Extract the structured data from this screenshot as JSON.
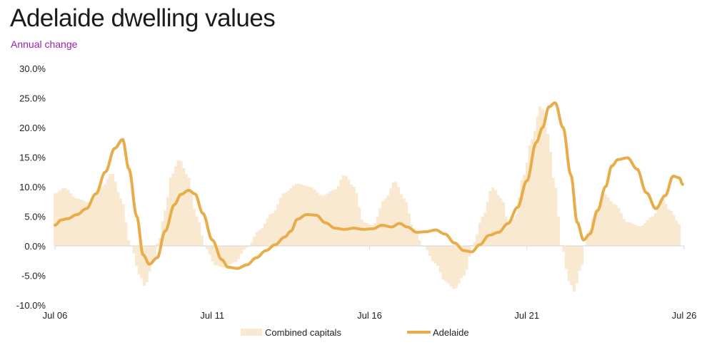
{
  "title": "Adelaide dwelling values",
  "subtitle": "Annual change",
  "colors": {
    "bars": "#f8e9d0",
    "line": "#e8ad4a",
    "axis": "#d6d6d6"
  },
  "chart_data": {
    "type": "bar",
    "title": "Adelaide dwelling values",
    "subtitle": "Annual change",
    "ylim": [
      -10,
      30
    ],
    "yticks": [
      30,
      25,
      20,
      15,
      10,
      5,
      0,
      -5,
      -10
    ],
    "ytick_labels": [
      "30.0%",
      "25.0%",
      "20.0%",
      "15.0%",
      "10.0%",
      "5.0%",
      "0.0%",
      "-5.0%",
      "-10.0%"
    ],
    "xticks": [
      2006.5,
      2011.5,
      2016.5,
      2021.5,
      2026.5
    ],
    "xtick_labels": [
      "Jul 06",
      "Jul 11",
      "Jul 16",
      "Jul 21",
      "Jul 26"
    ],
    "legend_position": "bottom",
    "series": [
      {
        "name": "Combined capitals",
        "type": "bar",
        "anchors": [
          [
            2006.5,
            8.9
          ],
          [
            2006.8,
            9.8
          ],
          [
            2007.2,
            8.0
          ],
          [
            2007.6,
            7.3
          ],
          [
            2008.0,
            10.0
          ],
          [
            2008.3,
            12.3
          ],
          [
            2008.6,
            8.0
          ],
          [
            2008.9,
            0.0
          ],
          [
            2009.2,
            -5.0
          ],
          [
            2009.35,
            -6.8
          ],
          [
            2009.6,
            -3.0
          ],
          [
            2009.8,
            1.0
          ],
          [
            2010.0,
            6.0
          ],
          [
            2010.2,
            12.0
          ],
          [
            2010.45,
            14.6
          ],
          [
            2010.7,
            12.0
          ],
          [
            2011.0,
            5.0
          ],
          [
            2011.3,
            -0.5
          ],
          [
            2011.6,
            -3.3
          ],
          [
            2011.9,
            -3.7
          ],
          [
            2012.2,
            -2.8
          ],
          [
            2012.6,
            -0.3
          ],
          [
            2013.0,
            2.7
          ],
          [
            2013.4,
            5.5
          ],
          [
            2013.8,
            9.0
          ],
          [
            2014.2,
            10.5
          ],
          [
            2014.6,
            10.0
          ],
          [
            2015.0,
            8.5
          ],
          [
            2015.4,
            9.5
          ],
          [
            2015.7,
            12.0
          ],
          [
            2016.0,
            10.0
          ],
          [
            2016.3,
            4.0
          ],
          [
            2016.6,
            3.5
          ],
          [
            2017.0,
            8.0
          ],
          [
            2017.3,
            10.9
          ],
          [
            2017.6,
            8.0
          ],
          [
            2017.9,
            3.0
          ],
          [
            2018.2,
            0.0
          ],
          [
            2018.6,
            -3.0
          ],
          [
            2018.9,
            -6.0
          ],
          [
            2019.2,
            -7.3
          ],
          [
            2019.5,
            -5.0
          ],
          [
            2019.8,
            0.5
          ],
          [
            2020.1,
            5.0
          ],
          [
            2020.4,
            9.9
          ],
          [
            2020.7,
            8.0
          ],
          [
            2020.9,
            4.0
          ],
          [
            2021.1,
            4.5
          ],
          [
            2021.4,
            12.0
          ],
          [
            2021.65,
            18.0
          ],
          [
            2021.95,
            23.8
          ],
          [
            2022.15,
            19.0
          ],
          [
            2022.4,
            10.0
          ],
          [
            2022.6,
            0.0
          ],
          [
            2022.85,
            -6.0
          ],
          [
            2023.0,
            -7.7
          ],
          [
            2023.2,
            -4.0
          ],
          [
            2023.4,
            1.5
          ],
          [
            2023.7,
            6.0
          ],
          [
            2023.95,
            8.8
          ],
          [
            2024.3,
            7.0
          ],
          [
            2024.7,
            4.0
          ],
          [
            2025.1,
            3.3
          ],
          [
            2025.5,
            5.0
          ],
          [
            2025.8,
            8.0
          ],
          [
            2026.05,
            6.0
          ],
          [
            2026.35,
            3.7
          ]
        ]
      },
      {
        "name": "Adelaide",
        "type": "line",
        "anchors": [
          [
            2006.5,
            3.5
          ],
          [
            2006.7,
            4.4
          ],
          [
            2006.9,
            4.6
          ],
          [
            2007.2,
            5.3
          ],
          [
            2007.5,
            6.3
          ],
          [
            2007.8,
            8.8
          ],
          [
            2008.1,
            12.5
          ],
          [
            2008.4,
            16.5
          ],
          [
            2008.65,
            18.0
          ],
          [
            2008.85,
            13.0
          ],
          [
            2009.1,
            5.0
          ],
          [
            2009.3,
            -1.5
          ],
          [
            2009.5,
            -3.1
          ],
          [
            2009.75,
            -2.0
          ],
          [
            2010.0,
            2.5
          ],
          [
            2010.3,
            7.0
          ],
          [
            2010.5,
            8.7
          ],
          [
            2010.75,
            9.4
          ],
          [
            2010.95,
            8.8
          ],
          [
            2011.2,
            5.5
          ],
          [
            2011.5,
            1.0
          ],
          [
            2011.8,
            -2.3
          ],
          [
            2012.0,
            -3.6
          ],
          [
            2012.3,
            -3.8
          ],
          [
            2012.6,
            -3.2
          ],
          [
            2012.9,
            -2.0
          ],
          [
            2013.2,
            -0.8
          ],
          [
            2013.5,
            0.2
          ],
          [
            2013.8,
            1.5
          ],
          [
            2014.0,
            2.5
          ],
          [
            2014.2,
            4.5
          ],
          [
            2014.5,
            5.3
          ],
          [
            2014.8,
            5.2
          ],
          [
            2015.1,
            3.9
          ],
          [
            2015.4,
            3.0
          ],
          [
            2015.7,
            2.8
          ],
          [
            2016.0,
            3.0
          ],
          [
            2016.3,
            2.8
          ],
          [
            2016.6,
            2.9
          ],
          [
            2016.9,
            3.5
          ],
          [
            2017.2,
            3.2
          ],
          [
            2017.45,
            3.8
          ],
          [
            2017.7,
            3.2
          ],
          [
            2018.0,
            2.3
          ],
          [
            2018.3,
            2.4
          ],
          [
            2018.6,
            2.7
          ],
          [
            2018.9,
            2.0
          ],
          [
            2019.2,
            0.5
          ],
          [
            2019.5,
            -0.8
          ],
          [
            2019.75,
            -1.0
          ],
          [
            2020.0,
            0.2
          ],
          [
            2020.3,
            1.8
          ],
          [
            2020.6,
            2.3
          ],
          [
            2020.9,
            3.8
          ],
          [
            2021.2,
            6.5
          ],
          [
            2021.5,
            11.0
          ],
          [
            2021.8,
            17.5
          ],
          [
            2022.0,
            20.0
          ],
          [
            2022.2,
            23.5
          ],
          [
            2022.4,
            24.2
          ],
          [
            2022.65,
            20.0
          ],
          [
            2022.9,
            12.0
          ],
          [
            2023.1,
            4.0
          ],
          [
            2023.3,
            1.0
          ],
          [
            2023.5,
            2.0
          ],
          [
            2023.75,
            6.0
          ],
          [
            2024.0,
            10.0
          ],
          [
            2024.2,
            13.5
          ],
          [
            2024.4,
            14.6
          ],
          [
            2024.7,
            14.9
          ],
          [
            2025.0,
            13.0
          ],
          [
            2025.3,
            9.0
          ],
          [
            2025.6,
            6.3
          ],
          [
            2025.9,
            8.5
          ],
          [
            2026.15,
            11.8
          ],
          [
            2026.35,
            11.5
          ],
          [
            2026.45,
            10.4
          ]
        ]
      }
    ]
  }
}
